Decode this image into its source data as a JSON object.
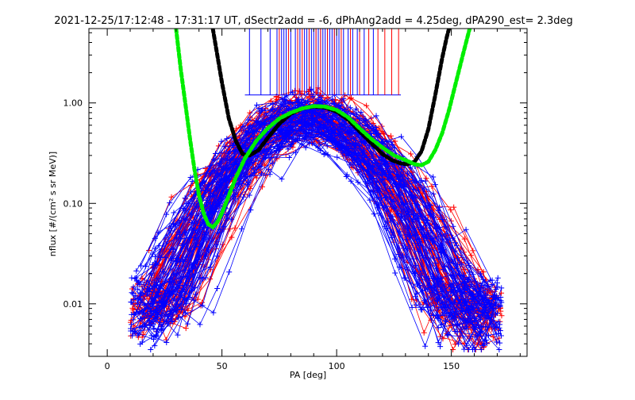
{
  "chart_data": {
    "type": "line",
    "title": "2021-12-25/17:12:48 - 17:31:17 UT, dSectr2add = -6, dPhAng2add = 4.25deg, dPA290_est=   2.3deg",
    "xlabel": "PA [deg]",
    "ylabel": "nflux [#/(cm² s sr MeV)]",
    "xlim": [
      -8,
      183
    ],
    "ylim": [
      0.003,
      5.5
    ],
    "yscale": "log",
    "xticks": [
      0,
      50,
      100,
      150
    ],
    "xtick_labels": [
      "0",
      "50",
      "100",
      "150"
    ],
    "yticks": [
      0.01,
      0.1,
      1.0
    ],
    "ytick_labels": [
      "0.01",
      "0.10",
      "1.00"
    ],
    "grid": false,
    "colors": {
      "blue_series": "#0000ff",
      "red_series": "#ff0000",
      "black_fit": "#000000",
      "green_fit": "#00ee00"
    },
    "series": [
      {
        "color": "#000000",
        "style": "thick-dashed",
        "x": [
          46,
          50,
          53,
          56,
          59,
          62,
          66,
          70,
          75,
          80,
          85,
          90,
          95,
          100,
          105,
          110,
          115,
          120,
          124,
          128,
          131,
          134,
          137,
          140,
          143,
          146,
          148,
          149
        ],
        "y": [
          5.5,
          1.6,
          0.7,
          0.42,
          0.31,
          0.3,
          0.34,
          0.45,
          0.62,
          0.78,
          0.88,
          0.92,
          0.9,
          0.82,
          0.68,
          0.52,
          0.4,
          0.31,
          0.27,
          0.25,
          0.245,
          0.26,
          0.33,
          0.55,
          1.2,
          2.8,
          4.5,
          5.5
        ]
      },
      {
        "color": "#00ee00",
        "style": "thick-dashed",
        "x": [
          30,
          32,
          34,
          36,
          38,
          40,
          42,
          44,
          46,
          48,
          50,
          53,
          56,
          60,
          65,
          70,
          75,
          80,
          85,
          90,
          95,
          100,
          105,
          110,
          115,
          120,
          125,
          130,
          134,
          137,
          140,
          143,
          146,
          149,
          152,
          155,
          158
        ],
        "y": [
          5.5,
          2.2,
          1.0,
          0.45,
          0.22,
          0.12,
          0.08,
          0.062,
          0.058,
          0.065,
          0.08,
          0.12,
          0.18,
          0.28,
          0.42,
          0.56,
          0.7,
          0.8,
          0.88,
          0.93,
          0.92,
          0.85,
          0.72,
          0.56,
          0.44,
          0.36,
          0.3,
          0.27,
          0.245,
          0.24,
          0.26,
          0.34,
          0.5,
          0.85,
          1.6,
          3.0,
          5.5
        ]
      }
    ],
    "spikes": {
      "blue_x": [
        62,
        67,
        71,
        74,
        76,
        77,
        78,
        80,
        82,
        84,
        86,
        87,
        88,
        89,
        90,
        91,
        92,
        93,
        94,
        95,
        96,
        97,
        98,
        99,
        100,
        101,
        103,
        105,
        107,
        109,
        112,
        116
      ],
      "red_x": [
        75,
        79,
        83,
        85,
        88,
        91,
        93,
        96,
        99,
        102,
        106,
        110,
        114,
        118,
        121,
        124,
        127
      ],
      "baseline_y": 1.2
    },
    "note": "Background consists of many individual PA-distribution traces (blue and red, with '+' markers) forming a dome peaking near 0.9 at ~90 deg and falling to ~0.005 at 20 and 160 deg."
  }
}
